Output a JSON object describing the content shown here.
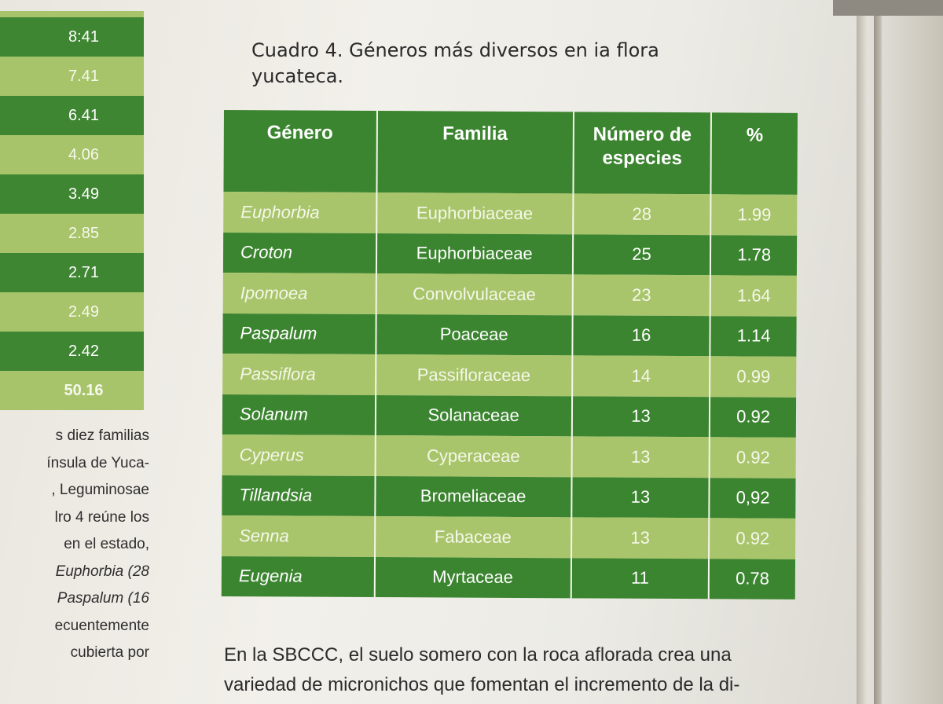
{
  "left_table": {
    "rows": [
      {
        "value": "8:41",
        "shade": "dark"
      },
      {
        "value": "7.41",
        "shade": "light"
      },
      {
        "value": "6.41",
        "shade": "dark"
      },
      {
        "value": "4.06",
        "shade": "light"
      },
      {
        "value": "3.49",
        "shade": "dark"
      },
      {
        "value": "2.85",
        "shade": "light"
      },
      {
        "value": "2.71",
        "shade": "dark"
      },
      {
        "value": "2.49",
        "shade": "light"
      },
      {
        "value": "2.42",
        "shade": "dark"
      },
      {
        "value": "50.16",
        "shade": "light"
      }
    ]
  },
  "left_text": {
    "lines": [
      "s diez familias",
      "ínsula de Yuca-",
      ", Leguminosae",
      "lro 4 reúne los",
      "en el estado,",
      "Euphorbia (28",
      "Paspalum (16",
      "ecuentemente",
      "cubierta por"
    ]
  },
  "caption": {
    "line1": "Cuadro 4. Géneros más diversos en ia flora",
    "line2": "yucateca."
  },
  "table": {
    "headers": {
      "genero": "Género",
      "familia": "Familia",
      "numero_line1": "Número de",
      "numero_line2": "especies",
      "pct": "%"
    },
    "rows": [
      {
        "genero": "Euphorbia",
        "familia": "Euphorbiaceae",
        "numero": "28",
        "pct": "1.99"
      },
      {
        "genero": "Croton",
        "familia": "Euphorbiaceae",
        "numero": "25",
        "pct": "1.78"
      },
      {
        "genero": "Ipomoea",
        "familia": "Convolvulaceae",
        "numero": "23",
        "pct": "1.64"
      },
      {
        "genero": "Paspalum",
        "familia": "Poaceae",
        "numero": "16",
        "pct": "1.14"
      },
      {
        "genero": "Passiflora",
        "familia": "Passifloraceae",
        "numero": "14",
        "pct": "0.99"
      },
      {
        "genero": "Solanum",
        "familia": "Solanaceae",
        "numero": "13",
        "pct": "0.92"
      },
      {
        "genero": "Cyperus",
        "familia": "Cyperaceae",
        "numero": "13",
        "pct": "0.92"
      },
      {
        "genero": "Tillandsia",
        "familia": "Bromeliaceae",
        "numero": "13",
        "pct": "0,92"
      },
      {
        "genero": "Senna",
        "familia": "Fabaceae",
        "numero": "13",
        "pct": "0.92"
      },
      {
        "genero": "Eugenia",
        "familia": "Myrtaceae",
        "numero": "11",
        "pct": "0.78"
      }
    ]
  },
  "body_text": {
    "line1": "En la SBCCC, el suelo somero con la roca aflorada crea una",
    "line2": "variedad de micronichos que fomentan el incremento de la di-"
  },
  "colors": {
    "dark_green": "#3c8530",
    "light_green": "#a9c56c",
    "paper": "#f0eee8"
  }
}
